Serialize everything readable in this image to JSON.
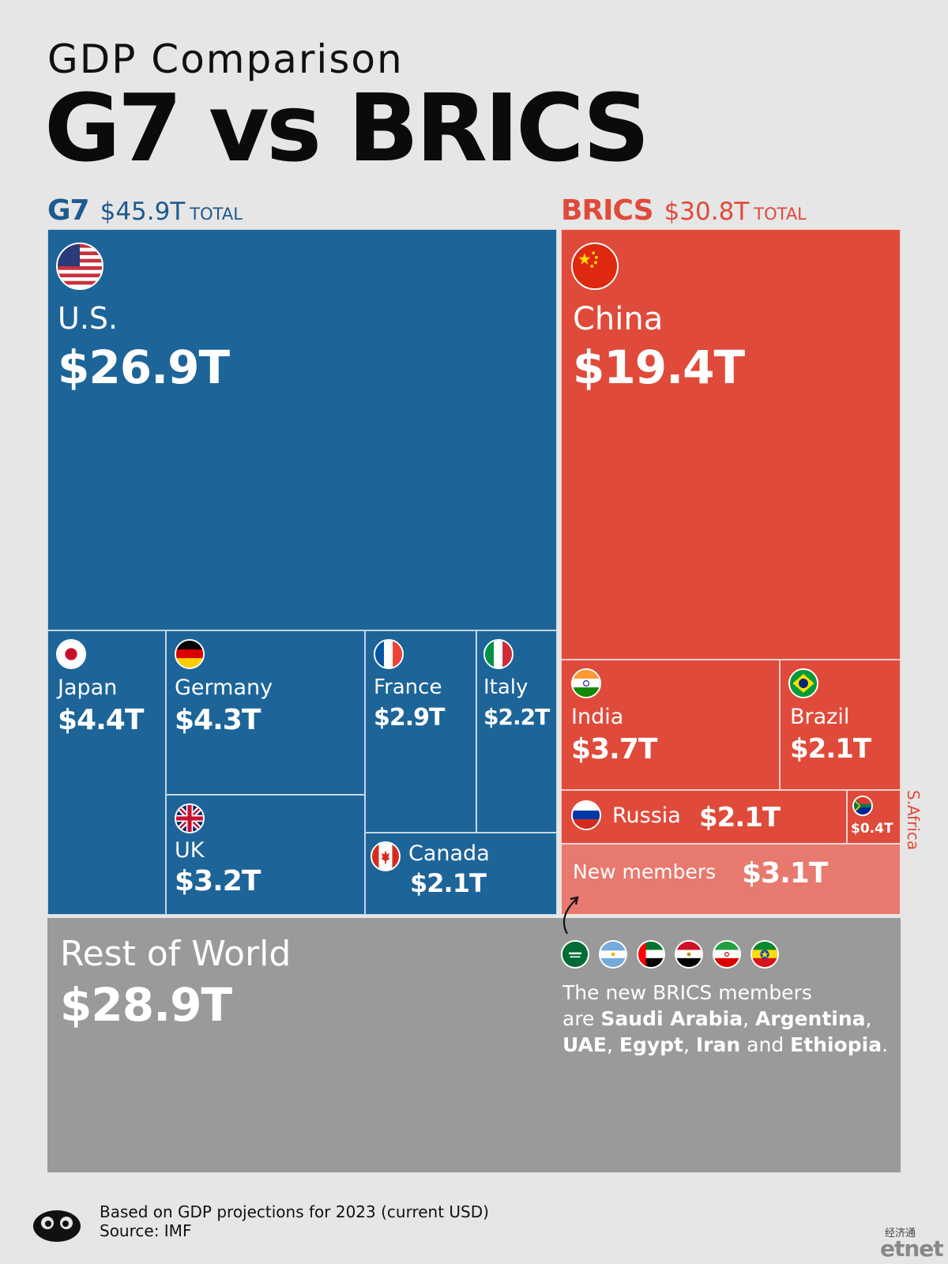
{
  "header": {
    "subtitle": "GDP Comparison",
    "title": "G7 vs BRICS"
  },
  "groups": {
    "g7": {
      "name": "G7",
      "total": "$45.9T",
      "total_unit": "TOTAL"
    },
    "brics": {
      "name": "BRICS",
      "total": "$30.8T",
      "total_unit": "TOTAL"
    }
  },
  "cells": {
    "us": {
      "name": "U.S.",
      "value": "$26.9T"
    },
    "japan": {
      "name": "Japan",
      "value": "$4.4T"
    },
    "germany": {
      "name": "Germany",
      "value": "$4.3T"
    },
    "france": {
      "name": "France",
      "value": "$2.9T"
    },
    "italy": {
      "name": "Italy",
      "value": "$2.2T"
    },
    "uk": {
      "name": "UK",
      "value": "$3.2T"
    },
    "canada": {
      "name": "Canada",
      "value": "$2.1T"
    },
    "china": {
      "name": "China",
      "value": "$19.4T"
    },
    "india": {
      "name": "India",
      "value": "$3.7T"
    },
    "brazil": {
      "name": "Brazil",
      "value": "$2.1T"
    },
    "russia": {
      "name": "Russia",
      "value": "$2.1T"
    },
    "safrica": {
      "name": "S.Africa",
      "value": "$0.4T"
    },
    "new_members": {
      "name": "New members",
      "value": "$3.1T"
    },
    "rest": {
      "name": "Rest of World",
      "value": "$28.9T"
    }
  },
  "note": {
    "line1": "The new BRICS members",
    "are": "are ",
    "saudi": "Saudi Arabia",
    "argentina": "Argentina",
    "uae": "UAE",
    "egypt": "Egypt",
    "iran": "Iran",
    "and": " and ",
    "ethiopia": "Ethiopia",
    "comma": ", ",
    "period": "."
  },
  "footer": {
    "line1": "Based on GDP projections for 2023 (current USD)",
    "line2": "Source: IMF"
  },
  "watermark": {
    "cn": "经济通",
    "brand": "etnet"
  },
  "colors": {
    "g7": "#1d6499",
    "brics": "#e04a3a",
    "new_members": "#e8796e",
    "rest": "#9a9a9a",
    "background": "#e6e6e6"
  },
  "chart_data": {
    "type": "treemap",
    "title": "G7 vs BRICS",
    "subtitle": "GDP Comparison",
    "groups": [
      {
        "name": "G7",
        "total": 45.9,
        "items": [
          {
            "name": "U.S.",
            "value": 26.9
          },
          {
            "name": "Japan",
            "value": 4.4
          },
          {
            "name": "Germany",
            "value": 4.3
          },
          {
            "name": "UK",
            "value": 3.2
          },
          {
            "name": "France",
            "value": 2.9
          },
          {
            "name": "Italy",
            "value": 2.2
          },
          {
            "name": "Canada",
            "value": 2.1
          }
        ]
      },
      {
        "name": "BRICS",
        "total": 30.8,
        "items": [
          {
            "name": "China",
            "value": 19.4
          },
          {
            "name": "India",
            "value": 3.7
          },
          {
            "name": "Brazil",
            "value": 2.1
          },
          {
            "name": "Russia",
            "value": 2.1
          },
          {
            "name": "S.Africa",
            "value": 0.4
          },
          {
            "name": "New members",
            "value": 3.1
          }
        ]
      },
      {
        "name": "Rest of World",
        "total": 28.9,
        "items": [
          {
            "name": "Rest of World",
            "value": 28.9
          }
        ]
      }
    ],
    "unit": "USD trillions"
  }
}
